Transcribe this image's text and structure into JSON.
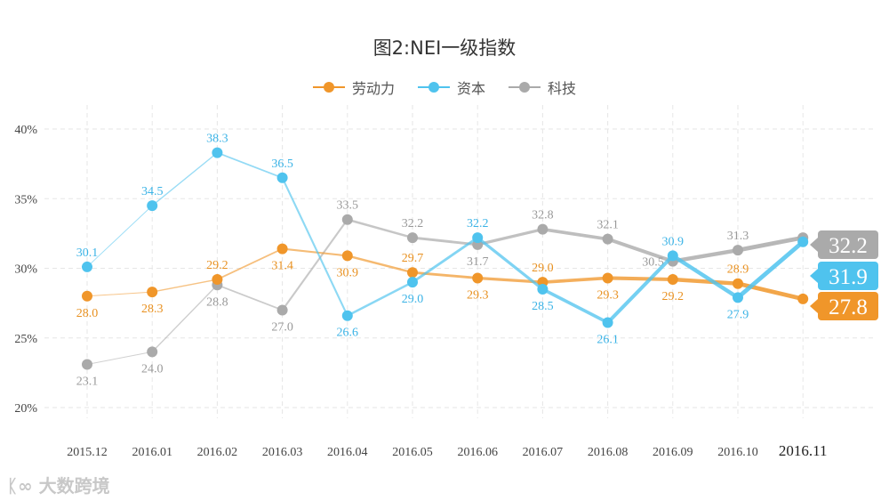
{
  "chart_data": {
    "type": "line",
    "title": "图2:NEI一级指数",
    "xlabel": "",
    "ylabel": "",
    "categories": [
      "2015.12",
      "2016.01",
      "2016.02",
      "2016.03",
      "2016.04",
      "2016.05",
      "2016.06",
      "2016.07",
      "2016.08",
      "2016.09",
      "2016.10",
      "2016.11"
    ],
    "y_ticks": [
      "20%",
      "25%",
      "30%",
      "35%",
      "40%"
    ],
    "ylim": [
      20,
      40
    ],
    "grid": true,
    "legend_position": "top-center",
    "series": [
      {
        "name": "劳动力",
        "color": "#f0962a",
        "values": [
          28.0,
          28.3,
          29.2,
          31.4,
          30.9,
          29.7,
          29.3,
          29.0,
          29.3,
          29.2,
          28.9,
          27.8
        ]
      },
      {
        "name": "资本",
        "color": "#4fc3ee",
        "values": [
          30.1,
          34.5,
          38.3,
          36.5,
          26.6,
          29.0,
          32.2,
          28.5,
          26.1,
          30.9,
          27.9,
          31.9
        ]
      },
      {
        "name": "科技",
        "color": "#aaaaaa",
        "values": [
          23.1,
          24.0,
          28.8,
          27.0,
          33.5,
          32.2,
          31.7,
          32.8,
          32.1,
          30.5,
          31.3,
          32.2
        ]
      }
    ]
  },
  "watermark": "大数跨境"
}
